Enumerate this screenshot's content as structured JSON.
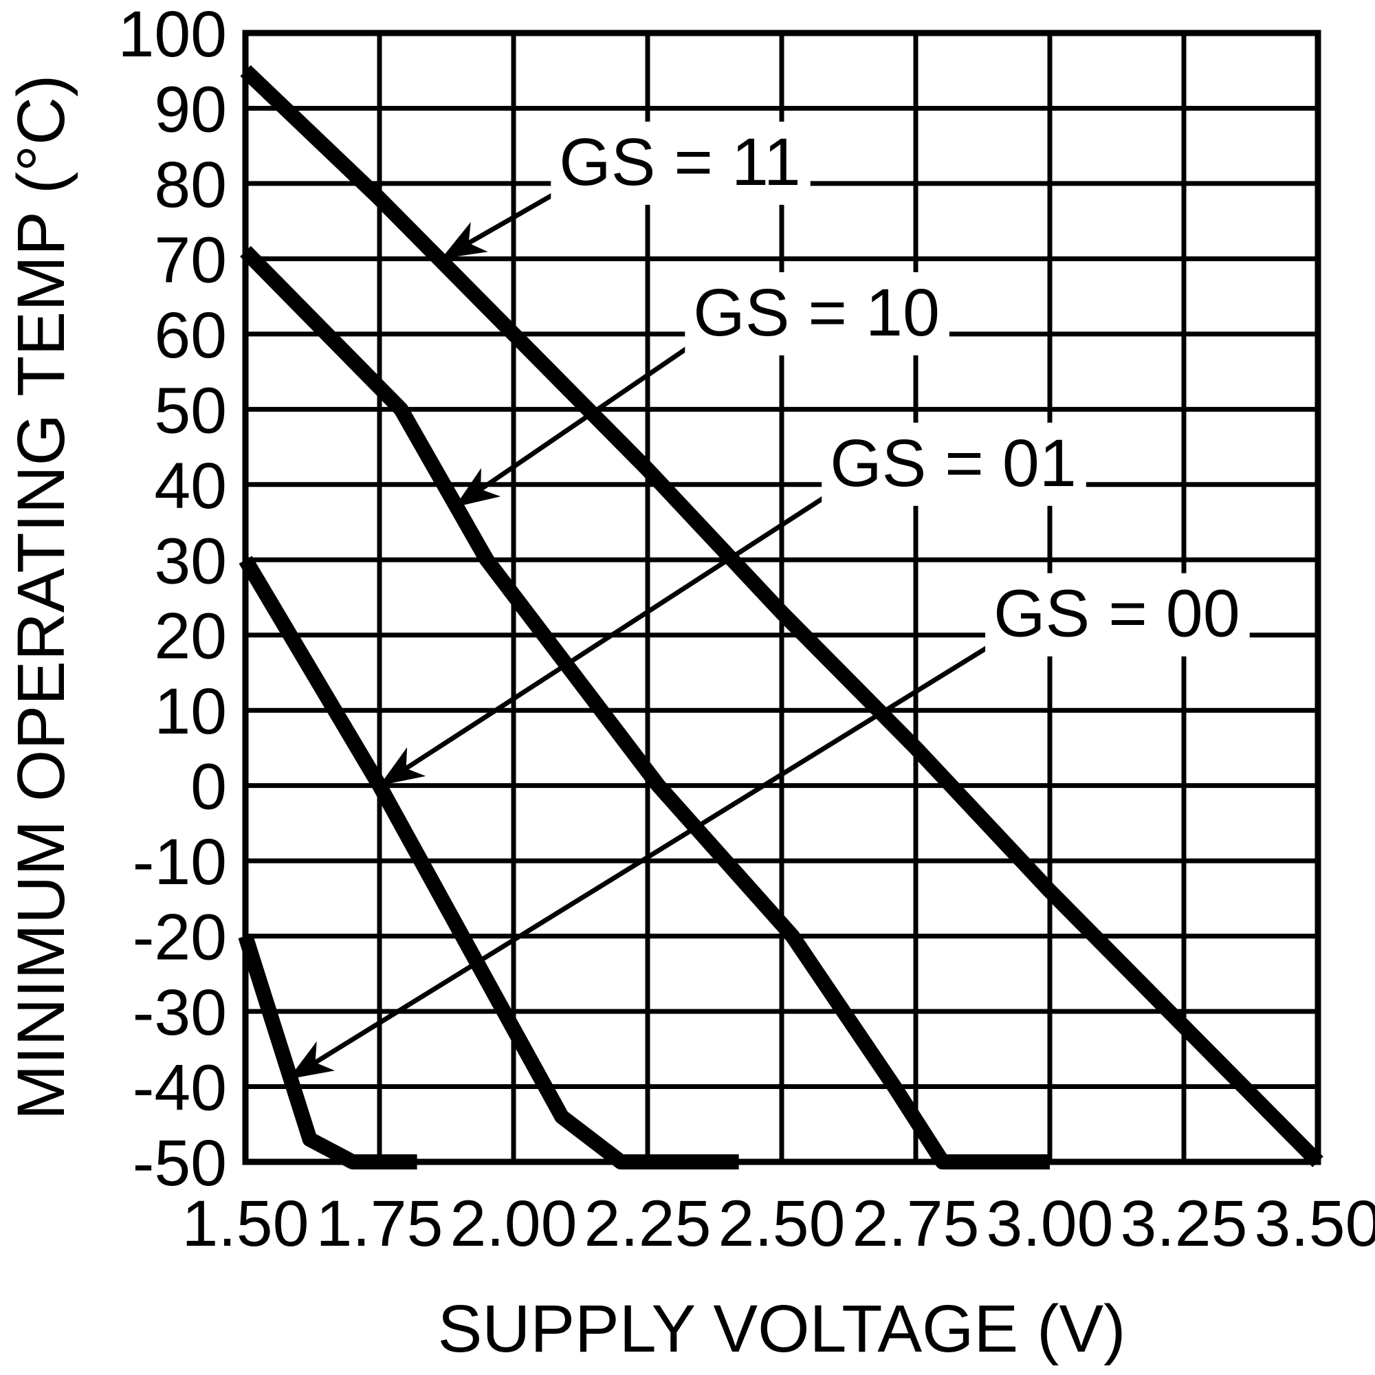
{
  "chart_data": {
    "type": "line",
    "title": "",
    "xlabel": "SUPPLY VOLTAGE (V)",
    "ylabel": "MINIMUM OPERATING TEMP (°C)",
    "xlim": [
      1.5,
      3.5
    ],
    "ylim": [
      -50,
      100
    ],
    "grid": true,
    "legend_position": "inline-arrow-labels",
    "background_color": "#ffffff",
    "line_color": "#000000",
    "x_tick_values": [
      1.5,
      1.75,
      2.0,
      2.25,
      2.5,
      2.75,
      3.0,
      3.25,
      3.5
    ],
    "x_tick_labels": [
      "1.50",
      "1.75",
      "2.00",
      "2.25",
      "2.50",
      "2.75",
      "3.00",
      "3.25",
      "3.50"
    ],
    "y_tick_values": [
      100,
      90,
      80,
      70,
      60,
      50,
      40,
      30,
      20,
      10,
      0,
      -10,
      -20,
      -30,
      -40,
      -50
    ],
    "y_tick_labels": [
      "100",
      "90",
      "80",
      "70",
      "60",
      "50",
      "40",
      "30",
      "20",
      "10",
      "0",
      "-10",
      "-20",
      "-30",
      "-40",
      "-50"
    ],
    "series": [
      {
        "name": "GS = 11",
        "points": [
          [
            1.5,
            95
          ],
          [
            1.75,
            78
          ],
          [
            2.0,
            60
          ],
          [
            2.25,
            42
          ],
          [
            2.5,
            23
          ],
          [
            2.75,
            5
          ],
          [
            3.0,
            -14
          ],
          [
            3.25,
            -32
          ],
          [
            3.5,
            -50
          ]
        ]
      },
      {
        "name": "GS = 10",
        "points": [
          [
            1.5,
            71
          ],
          [
            1.79,
            50
          ],
          [
            1.95,
            30
          ],
          [
            2.27,
            0
          ],
          [
            2.52,
            -20
          ],
          [
            2.71,
            -40
          ],
          [
            2.8,
            -50
          ],
          [
            3.0,
            -50
          ]
        ]
      },
      {
        "name": "GS = 01",
        "points": [
          [
            1.5,
            30
          ],
          [
            1.75,
            0
          ],
          [
            2.09,
            -44
          ],
          [
            2.2,
            -50
          ],
          [
            2.42,
            -50
          ]
        ]
      },
      {
        "name": "GS = 00",
        "points": [
          [
            1.5,
            -20
          ],
          [
            1.62,
            -47
          ],
          [
            1.7,
            -50
          ],
          [
            1.82,
            -50
          ]
        ]
      }
    ],
    "annotations": [
      {
        "label": "GS = 11",
        "label_x": 2.085,
        "label_y": 80,
        "arrow_tip_x": 1.865,
        "arrow_tip_y": 70
      },
      {
        "label": "GS = 10",
        "label_x": 2.335,
        "label_y": 60,
        "arrow_tip_x": 1.89,
        "arrow_tip_y": 37
      },
      {
        "label": "GS = 01",
        "label_x": 2.59,
        "label_y": 40,
        "arrow_tip_x": 1.75,
        "arrow_tip_y": 0
      },
      {
        "label": "GS = 00",
        "label_x": 2.895,
        "label_y": 20,
        "arrow_tip_x": 1.58,
        "arrow_tip_y": -39
      }
    ]
  }
}
